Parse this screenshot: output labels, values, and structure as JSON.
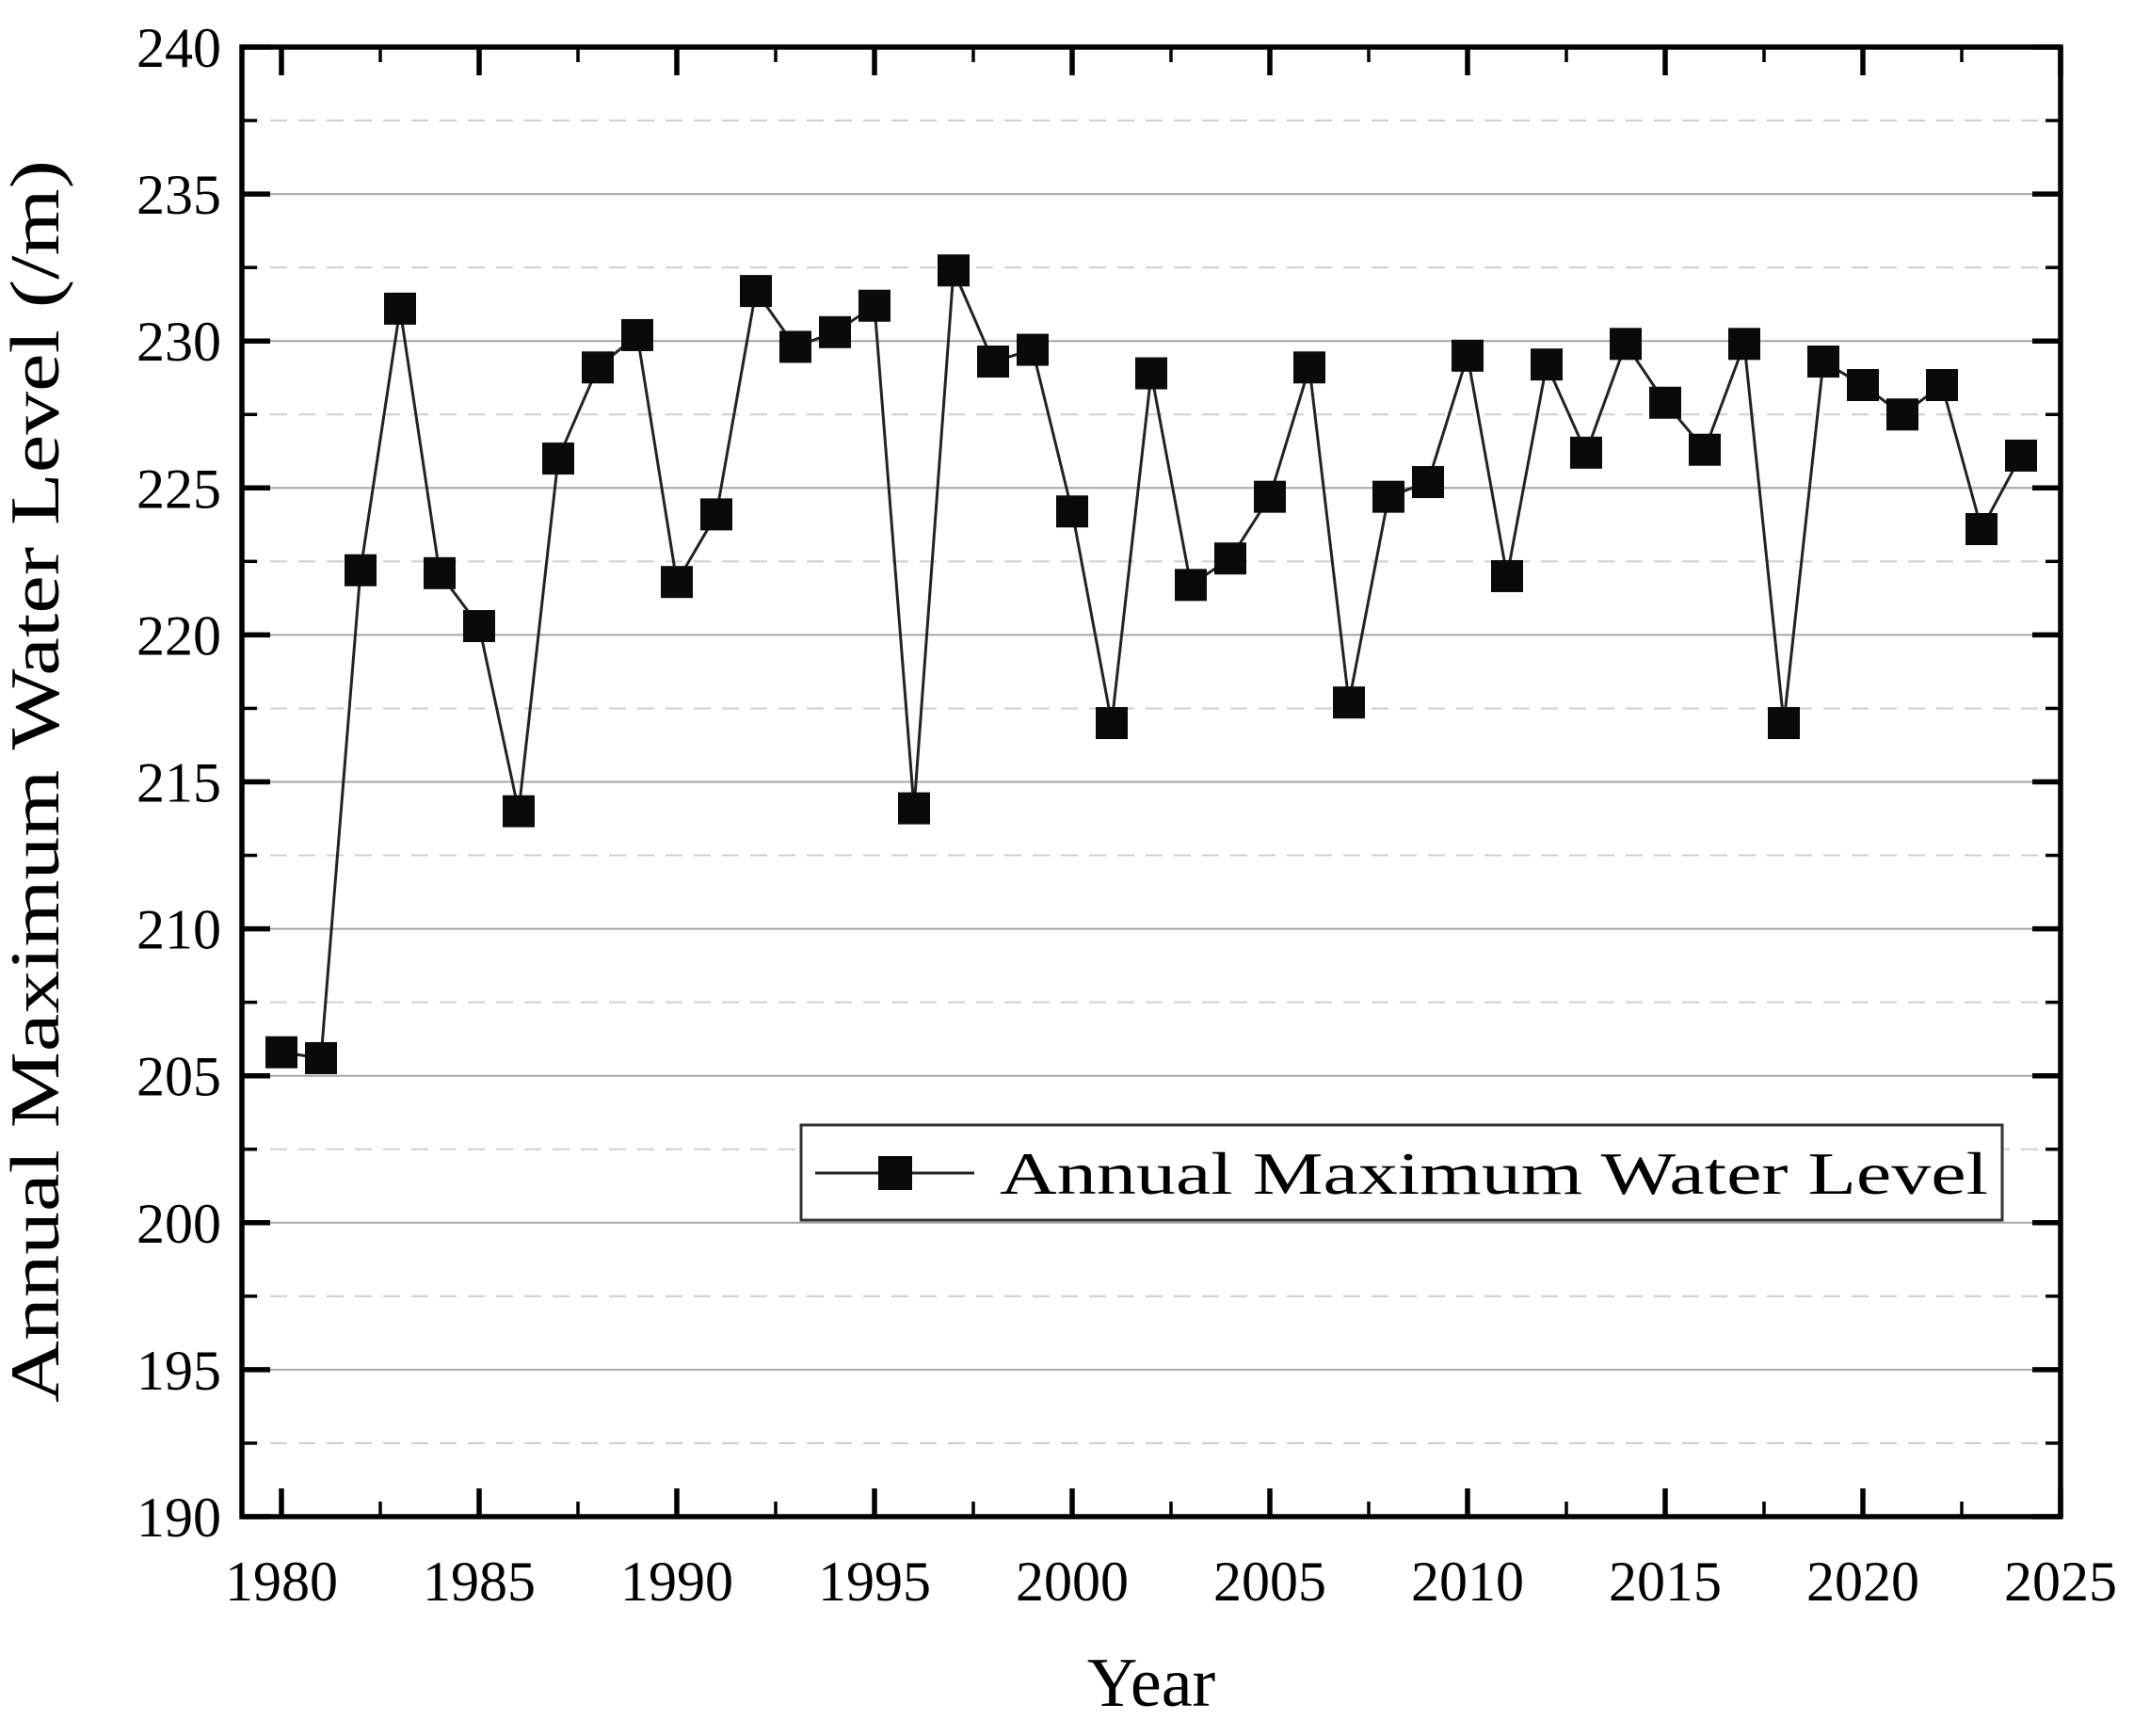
{
  "chart_data": {
    "type": "line",
    "title": "",
    "xlabel": "Year",
    "ylabel": "Annual Maximum Water Level (/m)",
    "legend_entries": [
      "Annual Maximum Water Level"
    ],
    "legend_position": "inside lower-right",
    "marker_style": "filled-square",
    "x_range": [
      1979,
      2025
    ],
    "y_range": [
      190,
      240
    ],
    "x_major_ticks": [
      1980,
      1985,
      1990,
      1995,
      2000,
      2005,
      2010,
      2015,
      2020,
      2025
    ],
    "x_minor_tick_interval": 2.5,
    "y_major_ticks": [
      190,
      195,
      200,
      205,
      210,
      215,
      220,
      225,
      230,
      235,
      240
    ],
    "y_minor_tick_interval": 2.5,
    "grid": {
      "major_horizontal": "solid",
      "minor_horizontal": "dashed",
      "vertical": "none"
    },
    "series": [
      {
        "name": "Annual Maximum Water Level",
        "x": [
          1980,
          1981,
          1982,
          1983,
          1984,
          1985,
          1986,
          1987,
          1988,
          1989,
          1990,
          1991,
          1992,
          1993,
          1994,
          1995,
          1996,
          1997,
          1998,
          1999,
          2000,
          2001,
          2002,
          2003,
          2004,
          2005,
          2006,
          2007,
          2008,
          2009,
          2010,
          2011,
          2012,
          2013,
          2014,
          2015,
          2016,
          2017,
          2018,
          2019,
          2020,
          2021,
          2022,
          2023,
          2024
        ],
        "y": [
          205.8,
          205.6,
          222.2,
          231.1,
          222.1,
          220.3,
          214.0,
          226.0,
          229.1,
          230.2,
          221.8,
          224.1,
          231.7,
          229.8,
          230.3,
          231.2,
          214.1,
          232.4,
          229.3,
          229.7,
          224.2,
          217.0,
          228.9,
          221.7,
          222.6,
          224.7,
          229.1,
          217.7,
          224.7,
          225.2,
          229.5,
          222.0,
          229.2,
          226.2,
          229.9,
          227.9,
          226.3,
          229.9,
          217.0,
          229.3,
          228.5,
          227.5,
          228.5,
          223.6,
          226.1
        ]
      }
    ]
  },
  "colors": {
    "background": "#ffffff",
    "frame": "#000000",
    "grid_solid": "#a6a6a6",
    "grid_dashed": "#cfcfcf",
    "series_line": "#222222",
    "marker_fill": "#0a0a0a",
    "text": "#000000"
  }
}
